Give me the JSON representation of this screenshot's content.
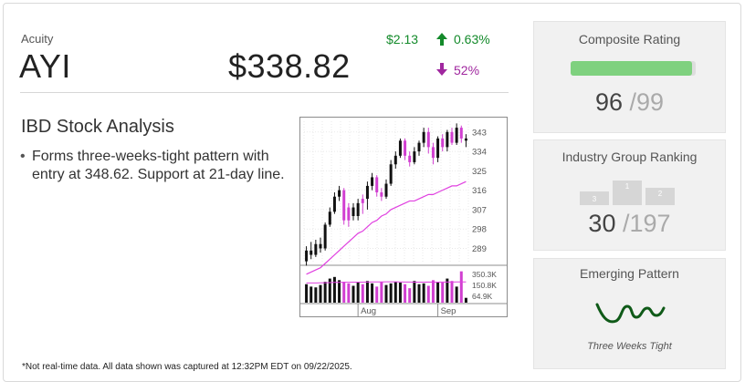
{
  "quote": {
    "company": "Acuity",
    "ticker": "AYI",
    "price": "$338.82",
    "change": "$2.13",
    "change_pct": "0.63%",
    "volume_pct": "52%",
    "up_color": "#138a2a",
    "volume_color": "#a0279f"
  },
  "analysis": {
    "title": "IBD Stock Analysis",
    "bullets": [
      "Forms three-weeks-tight pattern with entry at 348.62. Support at 21-day line."
    ]
  },
  "chart_data": {
    "type": "candlestick",
    "price_ticks": [
      "343",
      "334",
      "325",
      "316",
      "307",
      "298",
      "289"
    ],
    "price_range": [
      282,
      348
    ],
    "volume_ticks": [
      "350.3K",
      "150.8K",
      "64.9K"
    ],
    "volume_range": [
      0,
      420
    ],
    "x_labels": [
      "Aug",
      "Sep"
    ],
    "x_label_index": [
      11,
      28
    ],
    "candles": [
      {
        "o": 283,
        "c": 288,
        "h": 290,
        "l": 281,
        "up": false
      },
      {
        "o": 288,
        "c": 286,
        "h": 292,
        "l": 284,
        "up": false
      },
      {
        "o": 286,
        "c": 291,
        "h": 293,
        "l": 285,
        "up": false
      },
      {
        "o": 291,
        "c": 289,
        "h": 294,
        "l": 287,
        "up": false
      },
      {
        "o": 289,
        "c": 300,
        "h": 301,
        "l": 288,
        "up": false
      },
      {
        "o": 300,
        "c": 306,
        "h": 308,
        "l": 299,
        "up": false
      },
      {
        "o": 306,
        "c": 313,
        "h": 315,
        "l": 305,
        "up": false
      },
      {
        "o": 313,
        "c": 316,
        "h": 318,
        "l": 311,
        "up": false
      },
      {
        "o": 316,
        "c": 302,
        "h": 317,
        "l": 300,
        "up": true
      },
      {
        "o": 302,
        "c": 308,
        "h": 310,
        "l": 299,
        "up": true
      },
      {
        "o": 308,
        "c": 304,
        "h": 310,
        "l": 302,
        "up": false
      },
      {
        "o": 304,
        "c": 310,
        "h": 312,
        "l": 302,
        "up": false
      },
      {
        "o": 310,
        "c": 312,
        "h": 314,
        "l": 305,
        "up": true
      },
      {
        "o": 312,
        "c": 318,
        "h": 320,
        "l": 307,
        "up": false
      },
      {
        "o": 318,
        "c": 322,
        "h": 324,
        "l": 316,
        "up": false
      },
      {
        "o": 322,
        "c": 315,
        "h": 323,
        "l": 313,
        "up": true
      },
      {
        "o": 315,
        "c": 313,
        "h": 317,
        "l": 311,
        "up": true
      },
      {
        "o": 313,
        "c": 319,
        "h": 321,
        "l": 312,
        "up": false
      },
      {
        "o": 319,
        "c": 328,
        "h": 330,
        "l": 318,
        "up": false
      },
      {
        "o": 328,
        "c": 332,
        "h": 334,
        "l": 326,
        "up": false
      },
      {
        "o": 332,
        "c": 339,
        "h": 340,
        "l": 331,
        "up": false
      },
      {
        "o": 339,
        "c": 332,
        "h": 340,
        "l": 330,
        "up": true
      },
      {
        "o": 332,
        "c": 329,
        "h": 334,
        "l": 327,
        "up": true
      },
      {
        "o": 329,
        "c": 334,
        "h": 336,
        "l": 328,
        "up": false
      },
      {
        "o": 334,
        "c": 338,
        "h": 339,
        "l": 332,
        "up": false
      },
      {
        "o": 338,
        "c": 343,
        "h": 345,
        "l": 336,
        "up": false
      },
      {
        "o": 343,
        "c": 336,
        "h": 345,
        "l": 333,
        "up": true
      },
      {
        "o": 336,
        "c": 331,
        "h": 338,
        "l": 328,
        "up": true
      },
      {
        "o": 331,
        "c": 340,
        "h": 341,
        "l": 329,
        "up": false
      },
      {
        "o": 340,
        "c": 336,
        "h": 342,
        "l": 334,
        "up": true
      },
      {
        "o": 336,
        "c": 343,
        "h": 344,
        "l": 334,
        "up": false
      },
      {
        "o": 343,
        "c": 338,
        "h": 345,
        "l": 337,
        "up": true
      },
      {
        "o": 338,
        "c": 345,
        "h": 347,
        "l": 337,
        "up": false
      },
      {
        "o": 345,
        "c": 340,
        "h": 346,
        "l": 338,
        "up": true
      },
      {
        "o": 340,
        "c": 339,
        "h": 342,
        "l": 336,
        "up": false
      }
    ],
    "ma": [
      277,
      278,
      279,
      280,
      282,
      284,
      286,
      288,
      290,
      292,
      294,
      296,
      297,
      299,
      301,
      302,
      304,
      305,
      307,
      308,
      309,
      310,
      311,
      311,
      312,
      313,
      314,
      314,
      315,
      316,
      317,
      318,
      318,
      319,
      320
    ],
    "volumes": [
      230,
      200,
      190,
      220,
      260,
      300,
      320,
      280,
      260,
      240,
      210,
      250,
      230,
      270,
      240,
      200,
      260,
      220,
      240,
      260,
      250,
      230,
      180,
      270,
      230,
      240,
      210,
      280,
      260,
      250,
      300,
      270,
      200,
      390,
      60
    ],
    "volume_avg": [
      245,
      246,
      246,
      247,
      248,
      250,
      252,
      253,
      254,
      254,
      255,
      256,
      256,
      257,
      258,
      258,
      258,
      259,
      259,
      259,
      258,
      257,
      257,
      256,
      256,
      256,
      257,
      256,
      256,
      257,
      257,
      257,
      258,
      258,
      258
    ],
    "up_color": "#111111",
    "down_color": "#d13fd1",
    "ma_color": "#e040e0"
  },
  "footnote": "*Not real-time data. All data shown was captured at 12:32PM EDT on 09/22/2025.",
  "composite": {
    "title": "Composite Rating",
    "value": "96",
    "max": "99",
    "fill_fraction": 0.97,
    "bar_color": "#7fd17f"
  },
  "industry": {
    "title": "Industry Group Ranking",
    "value": "30",
    "max": "197",
    "podium": [
      "3",
      "1",
      "2"
    ]
  },
  "pattern": {
    "title": "Emerging Pattern",
    "name": "Three Weeks Tight",
    "line_color": "#0f5a18"
  }
}
